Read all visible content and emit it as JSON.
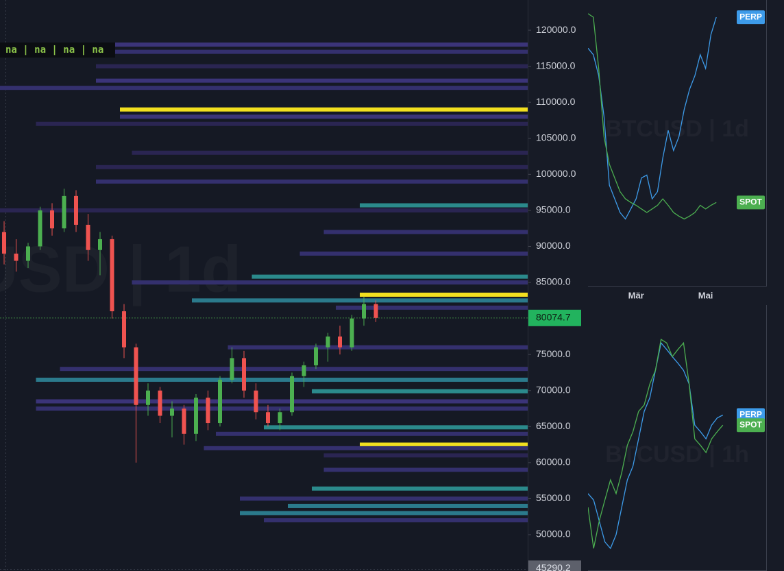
{
  "status_text": "na | na | na | na",
  "chart_data": [
    {
      "type": "candlestick",
      "watermark": "BTCUSD | 1d",
      "ylim": [
        44960,
        124190
      ],
      "yticks": [
        {
          "value": 120000,
          "label": "120000.0"
        },
        {
          "value": 115000,
          "label": "115000.0"
        },
        {
          "value": 110000,
          "label": "110000.0"
        },
        {
          "value": 105000,
          "label": "105000.0"
        },
        {
          "value": 100000,
          "label": "100000.0"
        },
        {
          "value": 95000,
          "label": "95000.0"
        },
        {
          "value": 90000,
          "label": "90000.0"
        },
        {
          "value": 85000,
          "label": "85000.0"
        },
        {
          "value": 75000,
          "label": "75000.0"
        },
        {
          "value": 70000,
          "label": "70000.0"
        },
        {
          "value": 65000,
          "label": "65000.0"
        },
        {
          "value": 60000,
          "label": "60000.0"
        },
        {
          "value": 55000,
          "label": "55000.0"
        },
        {
          "value": 50000,
          "label": "50000.0"
        }
      ],
      "last_price": 80074.7,
      "last_price_color": "#22b35e",
      "bottom_price": 45290.2,
      "up_color": "#4caf50",
      "down_color": "#ef5350",
      "open": [
        92000,
        89000,
        88000,
        90000,
        95000,
        92500,
        97000,
        93000,
        89500,
        91000,
        81000,
        76000,
        68000,
        70000,
        66500,
        67500,
        64000,
        69000,
        65500,
        71500,
        74500,
        70000,
        67000,
        65500,
        67000,
        72000,
        73500,
        76000,
        77500,
        76000,
        80000,
        82000
      ],
      "high": [
        93500,
        91000,
        90500,
        95500,
        96000,
        98000,
        97800,
        94500,
        92000,
        91500,
        82000,
        76500,
        71000,
        70500,
        68500,
        68000,
        69500,
        70000,
        72000,
        76000,
        75500,
        71000,
        68000,
        67500,
        72500,
        74000,
        76500,
        78000,
        79000,
        80500,
        83000,
        82500
      ],
      "low": [
        87500,
        86500,
        87000,
        89500,
        91500,
        92000,
        92000,
        88000,
        86000,
        80000,
        74500,
        60000,
        66500,
        65500,
        63500,
        62500,
        63000,
        64500,
        65000,
        71000,
        69000,
        66000,
        65000,
        64500,
        66500,
        70500,
        73000,
        74000,
        75000,
        75500,
        79000,
        79500
      ],
      "close": [
        89000,
        88000,
        90000,
        95000,
        92500,
        97000,
        93000,
        89500,
        91000,
        81000,
        76000,
        68000,
        70000,
        66500,
        67500,
        64000,
        69000,
        65500,
        71500,
        74500,
        70000,
        67000,
        65500,
        67000,
        72000,
        73500,
        76000,
        77500,
        76000,
        80000,
        82000,
        80074.7
      ],
      "levels": [
        {
          "price": 118000,
          "from": 0,
          "color": "#3b3479"
        },
        {
          "price": 117000,
          "from": 0,
          "color": "#34306e"
        },
        {
          "price": 115000,
          "from": 8,
          "color": "#2a2552"
        },
        {
          "price": 113000,
          "from": 8,
          "color": "#3b3479"
        },
        {
          "price": 112000,
          "from": 0,
          "color": "#34306e"
        },
        {
          "price": 109000,
          "from": 10,
          "color": "#f2df1f"
        },
        {
          "price": 108000,
          "from": 10,
          "color": "#3b3479"
        },
        {
          "price": 107000,
          "from": 3,
          "color": "#2a2552"
        },
        {
          "price": 103000,
          "from": 11,
          "color": "#2a2552"
        },
        {
          "price": 101000,
          "from": 8,
          "color": "#2a2552"
        },
        {
          "price": 99000,
          "from": 8,
          "color": "#34306e"
        },
        {
          "price": 95700,
          "from": 30,
          "color": "#2b8a8c"
        },
        {
          "price": 95000,
          "from": 0,
          "color": "#2a2552"
        },
        {
          "price": 92000,
          "from": 27,
          "color": "#34306e"
        },
        {
          "price": 89000,
          "from": 25,
          "color": "#34306e"
        },
        {
          "price": 85800,
          "from": 21,
          "color": "#2b8a8c"
        },
        {
          "price": 85000,
          "from": 11,
          "color": "#34306e"
        },
        {
          "price": 83300,
          "from": 30,
          "color": "#f2df1f"
        },
        {
          "price": 82500,
          "from": 16,
          "color": "#2b7a8c"
        },
        {
          "price": 81500,
          "from": 28,
          "color": "#34306e"
        },
        {
          "price": 76000,
          "from": 19,
          "color": "#34306e"
        },
        {
          "price": 73000,
          "from": 5,
          "color": "#34306e"
        },
        {
          "price": 71500,
          "from": 3,
          "color": "#2b7a8c"
        },
        {
          "price": 69900,
          "from": 26,
          "color": "#2b8a8c"
        },
        {
          "price": 68500,
          "from": 3,
          "color": "#3b3479"
        },
        {
          "price": 67500,
          "from": 3,
          "color": "#34306e"
        },
        {
          "price": 64900,
          "from": 22,
          "color": "#2b8a8c"
        },
        {
          "price": 64000,
          "from": 18,
          "color": "#34306e"
        },
        {
          "price": 62500,
          "from": 30,
          "color": "#f2df1f"
        },
        {
          "price": 62000,
          "from": 17,
          "color": "#34306e"
        },
        {
          "price": 61000,
          "from": 27,
          "color": "#2a2552"
        },
        {
          "price": 59000,
          "from": 27,
          "color": "#34306e"
        },
        {
          "price": 56400,
          "from": 26,
          "color": "#2b8a8c"
        },
        {
          "price": 55000,
          "from": 20,
          "color": "#34306e"
        },
        {
          "price": 54000,
          "from": 24,
          "color": "#2b7a8c"
        },
        {
          "price": 53000,
          "from": 20,
          "color": "#2b7a8c"
        },
        {
          "price": 52000,
          "from": 22,
          "color": "#34306e"
        }
      ]
    },
    {
      "type": "line",
      "watermark": "BTCUSD | 1d",
      "ylim": [
        44960,
        124190
      ],
      "categories": [
        null,
        null,
        null,
        null,
        null,
        null,
        null,
        null,
        null,
        "Mär",
        null,
        null,
        null,
        null,
        null,
        null,
        null,
        null,
        null,
        null,
        null,
        null,
        "Mai",
        null,
        null
      ],
      "series": [
        {
          "name": "PERP",
          "color": "#3d9be9",
          "values": [
            117500,
            116600,
            113700,
            108000,
            98500,
            96600,
            94700,
            93800,
            95200,
            96600,
            99500,
            99900,
            96600,
            97600,
            102300,
            106100,
            103300,
            105200,
            109000,
            111800,
            113700,
            116600,
            114700,
            119400,
            121800
          ]
        },
        {
          "name": "SPOT",
          "color": "#4caf50",
          "values": [
            122300,
            121800,
            114700,
            105200,
            101400,
            99500,
            97600,
            96600,
            96100,
            95700,
            95200,
            94700,
            95200,
            95700,
            96600,
            95700,
            94700,
            94200,
            93800,
            94200,
            94700,
            95700,
            95200,
            95700,
            96100
          ]
        }
      ]
    },
    {
      "type": "line",
      "watermark": "BTCUSD | 1h",
      "ylim": [
        44960,
        124190
      ],
      "categories": [
        null,
        null,
        null,
        null,
        null,
        null,
        null,
        null,
        null,
        null,
        null,
        null,
        null,
        null,
        null,
        null,
        null,
        null,
        null,
        null,
        null,
        null,
        null,
        null,
        null
      ],
      "series": [
        {
          "name": "PERP",
          "color": "#3d9be9",
          "values": [
            55700,
            54800,
            51900,
            49000,
            48100,
            50000,
            53800,
            57600,
            59500,
            63300,
            67100,
            69000,
            72800,
            76600,
            75700,
            74700,
            73800,
            72800,
            70900,
            65200,
            64300,
            63300,
            65200,
            66200,
            66600
          ]
        },
        {
          "name": "SPOT",
          "color": "#4caf50",
          "values": [
            53800,
            48100,
            51900,
            54800,
            57600,
            55700,
            58600,
            62400,
            64300,
            67100,
            68000,
            70900,
            72800,
            77100,
            76600,
            74700,
            75700,
            76600,
            70900,
            63300,
            62400,
            61400,
            63300,
            64300,
            65200
          ]
        }
      ]
    }
  ]
}
